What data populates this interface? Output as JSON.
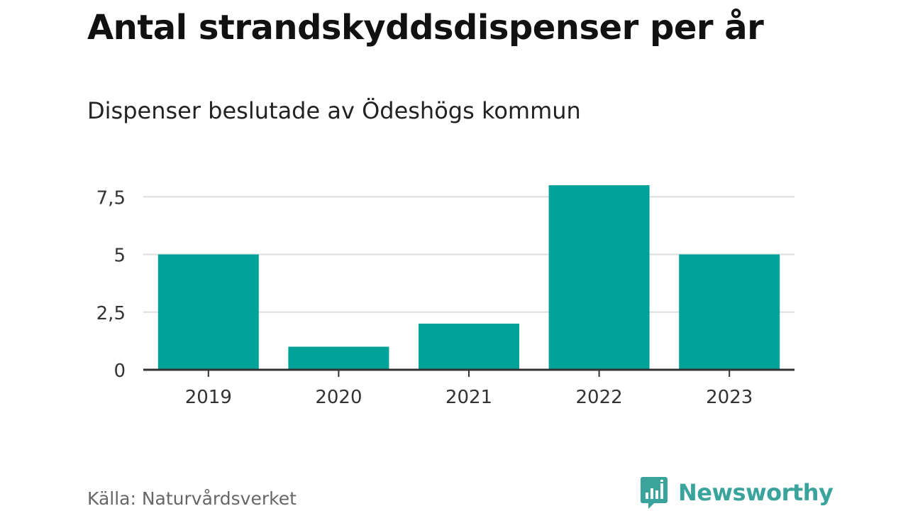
{
  "header": {
    "title": "Antal strandskyddsdispenser per år",
    "subtitle": "Dispenser beslutade av Ödeshögs kommun"
  },
  "footer": {
    "source": "Källa: Naturvårdsverket",
    "brand": "Newsworthy"
  },
  "colors": {
    "bar": "#00a39a",
    "grid": "#dddddd",
    "axis": "#333333",
    "brand": "#3aa39b"
  },
  "chart_data": {
    "type": "bar",
    "title": "Antal strandskyddsdispenser per år",
    "subtitle": "Dispenser beslutade av Ödeshögs kommun",
    "categories": [
      "2019",
      "2020",
      "2021",
      "2022",
      "2023"
    ],
    "values": [
      5,
      1,
      2,
      8,
      5
    ],
    "xlabel": "",
    "ylabel": "",
    "ylim": [
      0,
      8.5
    ],
    "yticks": [
      0,
      2.5,
      5,
      7.5
    ],
    "ytick_labels": [
      "0",
      "2,5",
      "5",
      "7,5"
    ],
    "grid": true,
    "legend": "none"
  }
}
